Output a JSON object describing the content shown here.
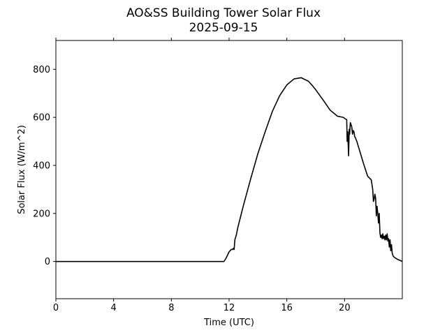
{
  "chart_data": {
    "type": "line",
    "title": "AO&SS Building Tower Solar Flux",
    "subtitle": "2025-09-15",
    "xlabel": "Time (UTC)",
    "ylabel": "Solar Flux (W/m^2)",
    "xlim": [
      0,
      24
    ],
    "ylim": [
      -155,
      920
    ],
    "x_ticks": [
      0,
      4,
      8,
      12,
      16,
      20
    ],
    "y_ticks": [
      0,
      200,
      400,
      600,
      800
    ],
    "grid": false,
    "series_color": "#000000",
    "x": [
      0,
      11.65,
      11.8,
      12.0,
      12.15,
      12.25,
      12.3,
      12.35,
      12.4,
      12.5,
      12.6,
      13.0,
      13.5,
      14.0,
      14.5,
      15.0,
      15.5,
      16.0,
      16.5,
      17.0,
      17.5,
      17.8,
      18.0,
      18.3,
      18.6,
      19.0,
      19.5,
      19.9,
      20.15,
      20.18,
      20.22,
      20.28,
      20.32,
      20.35,
      20.4,
      20.45,
      20.5,
      20.55,
      20.6,
      20.65,
      20.7,
      20.75,
      20.85,
      21.0,
      21.3,
      21.6,
      21.85,
      21.95,
      22.0,
      22.05,
      22.1,
      22.15,
      22.2,
      22.25,
      22.3,
      22.35,
      22.4,
      22.45,
      22.5,
      22.55,
      22.6,
      22.65,
      22.7,
      22.75,
      22.8,
      22.85,
      22.9,
      22.95,
      23.0,
      23.05,
      23.1,
      23.15,
      23.2,
      23.25,
      23.3,
      23.35,
      23.4,
      23.5,
      23.7,
      23.9,
      24.0
    ],
    "y": [
      0,
      0,
      15,
      40,
      50,
      50,
      55,
      50,
      90,
      110,
      140,
      235,
      345,
      450,
      540,
      625,
      690,
      735,
      760,
      765,
      750,
      730,
      715,
      690,
      665,
      630,
      605,
      600,
      590,
      500,
      540,
      440,
      550,
      530,
      578,
      570,
      560,
      530,
      545,
      540,
      520,
      515,
      500,
      470,
      410,
      355,
      340,
      300,
      250,
      260,
      280,
      265,
      190,
      230,
      200,
      160,
      200,
      120,
      100,
      110,
      95,
      115,
      95,
      105,
      90,
      110,
      90,
      115,
      85,
      95,
      60,
      90,
      45,
      70,
      35,
      25,
      20,
      15,
      8,
      3,
      0
    ]
  }
}
